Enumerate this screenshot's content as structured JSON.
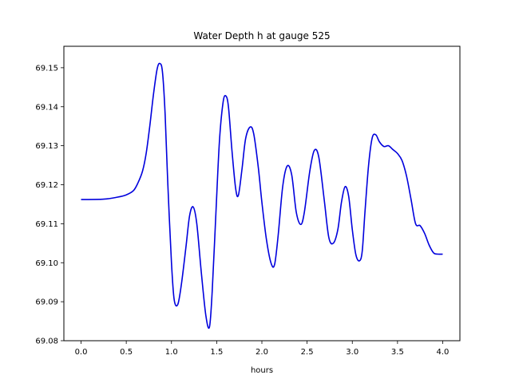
{
  "chart_data": {
    "type": "line",
    "title": "Water Depth h at gauge 525",
    "xlabel": "hours",
    "ylabel": "",
    "xlim": [
      -0.19,
      4.19
    ],
    "ylim": [
      69.08,
      69.1555
    ],
    "xticks": [
      "0.0",
      "0.5",
      "1.0",
      "1.5",
      "2.0",
      "2.5",
      "3.0",
      "3.5",
      "4.0"
    ],
    "xtick_values": [
      0.0,
      0.5,
      1.0,
      1.5,
      2.0,
      2.5,
      3.0,
      3.5,
      4.0
    ],
    "yticks": [
      "69.08",
      "69.09",
      "69.10",
      "69.11",
      "69.12",
      "69.13",
      "69.14",
      "69.15"
    ],
    "ytick_values": [
      69.08,
      69.09,
      69.1,
      69.11,
      69.12,
      69.13,
      69.14,
      69.15
    ],
    "grid": false,
    "series": [
      {
        "name": "",
        "color": "#0000dd",
        "x": [
          0.0,
          0.25,
          0.4,
          0.5,
          0.58,
          0.63,
          0.68,
          0.72,
          0.76,
          0.8,
          0.84,
          0.87,
          0.9,
          0.93,
          0.96,
          1.0,
          1.03,
          1.07,
          1.11,
          1.16,
          1.2,
          1.24,
          1.28,
          1.33,
          1.38,
          1.42,
          1.45,
          1.49,
          1.53,
          1.57,
          1.6,
          1.63,
          1.67,
          1.71,
          1.74,
          1.78,
          1.82,
          1.87,
          1.91,
          1.96,
          2.0,
          2.05,
          2.1,
          2.14,
          2.18,
          2.23,
          2.28,
          2.33,
          2.38,
          2.43,
          2.47,
          2.53,
          2.58,
          2.63,
          2.69,
          2.74,
          2.79,
          2.84,
          2.88,
          2.92,
          2.96,
          3.0,
          3.04,
          3.08,
          3.11,
          3.14,
          3.18,
          3.22,
          3.26,
          3.3,
          3.35,
          3.4,
          3.45,
          3.5,
          3.55,
          3.6,
          3.65,
          3.7,
          3.75,
          3.8,
          3.85,
          3.9,
          3.95,
          4.0
        ],
        "y": [
          69.1162,
          69.1163,
          69.1168,
          69.1174,
          69.1185,
          69.1205,
          69.1235,
          69.128,
          69.135,
          69.143,
          69.1495,
          69.1511,
          69.149,
          69.138,
          69.12,
          69.1,
          69.0905,
          69.0893,
          69.0945,
          69.104,
          69.112,
          69.1143,
          69.11,
          69.0975,
          69.0865,
          69.0835,
          69.0925,
          69.112,
          69.131,
          69.141,
          69.1428,
          69.14,
          69.1285,
          69.119,
          69.1173,
          69.124,
          69.1318,
          69.1348,
          69.133,
          69.1245,
          69.1155,
          69.106,
          69.1,
          69.0995,
          69.107,
          69.1195,
          69.1248,
          69.1225,
          69.113,
          69.1098,
          69.113,
          69.1235,
          69.1288,
          69.127,
          69.116,
          69.1065,
          69.105,
          69.1085,
          69.1155,
          69.1195,
          69.117,
          69.1085,
          69.102,
          69.1005,
          69.103,
          69.113,
          69.125,
          69.132,
          69.1328,
          69.131,
          69.1298,
          69.13,
          69.129,
          69.128,
          69.1262,
          69.1222,
          69.1162,
          69.11,
          69.1095,
          69.1075,
          69.1045,
          69.1025,
          69.1022,
          69.1022
        ]
      }
    ]
  }
}
